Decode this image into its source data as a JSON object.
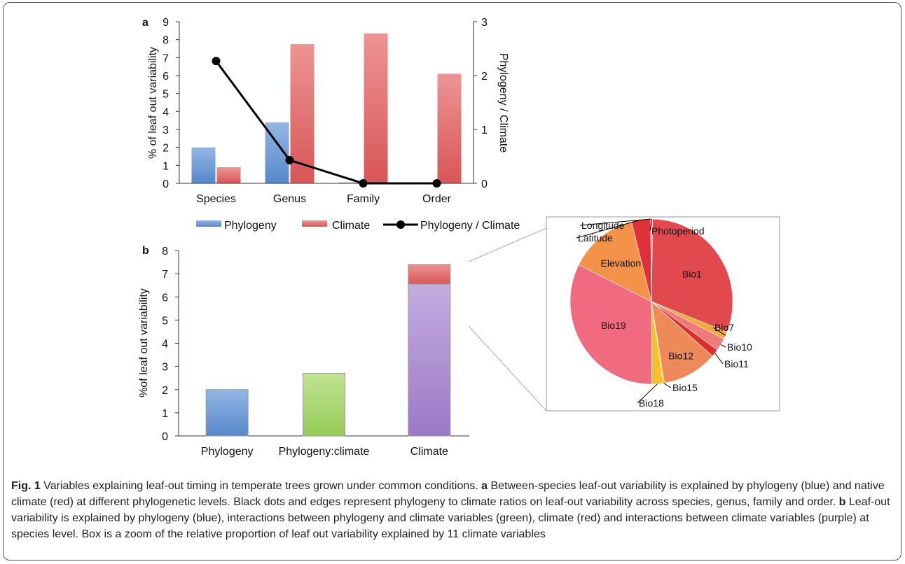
{
  "chart_data": [
    {
      "panel": "a",
      "type": "bar",
      "categories": [
        "Species",
        "Genus",
        "Family",
        "Order"
      ],
      "series": [
        {
          "name": "Phylogeny",
          "values": [
            2.0,
            3.4,
            0.05,
            0.0
          ],
          "color": "#5b8fd6"
        },
        {
          "name": "Climate",
          "values": [
            0.9,
            7.75,
            8.35,
            6.1
          ],
          "color": "#e35a5a"
        }
      ],
      "secondary_series": {
        "name": "Phylogeny / Climate",
        "type": "line",
        "values": [
          2.27,
          0.43,
          0.0,
          0.0
        ],
        "color": "#000000"
      },
      "ylabel": "% of leaf out variability",
      "y2label": "Phylogeny / Climate",
      "ylim": [
        0,
        9
      ],
      "y2lim": [
        0,
        3
      ],
      "yticks": [
        "0",
        "1",
        "2",
        "3",
        "4",
        "5",
        "6",
        "7",
        "8",
        "9"
      ],
      "y2ticks": [
        "0",
        "1",
        "2",
        "3"
      ],
      "legend": "bottom"
    },
    {
      "panel": "b",
      "type": "bar",
      "categories": [
        "Phylogeny",
        "Phylogeny:climate",
        "Climate"
      ],
      "stacked": [
        {
          "name": "Phylogeny",
          "values": [
            2.0,
            0,
            0
          ],
          "color": "#5b8fd6"
        },
        {
          "name": "Phylogeny:climate",
          "values": [
            0,
            2.7,
            0
          ],
          "color": "#9ed65a"
        },
        {
          "name": "Climate interactions",
          "values": [
            0,
            0,
            6.55
          ],
          "color": "#a37fcf"
        },
        {
          "name": "Climate",
          "values": [
            0,
            0,
            0.85
          ],
          "color": "#e35a5a"
        }
      ],
      "ylabel": "%of leaf out variability",
      "ylim": [
        0,
        8
      ],
      "yticks": [
        "0",
        "1",
        "2",
        "3",
        "4",
        "5",
        "6",
        "7",
        "8"
      ]
    },
    {
      "panel": "b-inset",
      "type": "pie",
      "labels": [
        "Bio1",
        "Bio7",
        "Bio10",
        "Bio11",
        "Bio12",
        "Bio15",
        "Bio18",
        "Bio19",
        "Elevation",
        "Latitude",
        "Longitude",
        "Photoperiod"
      ],
      "values": [
        30.8,
        1.5,
        2.5,
        1.5,
        11.0,
        0.3,
        2.2,
        32.5,
        13.7,
        3.8,
        0.1,
        0.3
      ],
      "colors": [
        "#e2494f",
        "#f4a93a",
        "#ee7a7a",
        "#e02b2b",
        "#ee8a5a",
        "#fbbf30",
        "#f5c028",
        "#f06b80",
        "#f4924a",
        "#e0303a",
        "#f0d0d0",
        "#f6b0b0"
      ]
    }
  ],
  "panel_labels": {
    "a": "a",
    "b": "b"
  },
  "caption": {
    "fig_label": "Fig. 1",
    "part1": " Variables explaining leaf-out timing in temperate trees grown under common conditions. ",
    "a_label": "a",
    "part2": " Between-species leaf-out variability is explained by phylogeny (blue) and native climate (red) at different phylogenetic levels. Black dots and edges represent phylogeny to climate ratios on leaf-out variability across species, genus, family and order. ",
    "b_label": "b",
    "part3": " Leaf-out variability is explained by phylogeny (blue), interactions between phylogeny and climate variables (green), climate (red) and interactions between climate variables (purple) at species level. Box is a zoom of the relative proportion of leaf out variability explained by 11 climate variables"
  }
}
